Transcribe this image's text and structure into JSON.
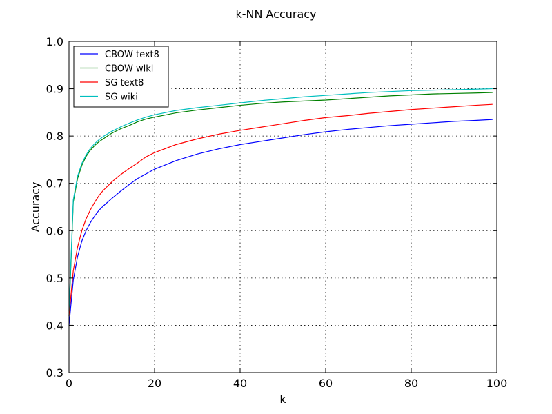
{
  "chart_data": {
    "type": "line",
    "title": "k-NN Accuracy",
    "xlabel": "k",
    "ylabel": "Accuracy",
    "xlim": [
      0,
      100
    ],
    "ylim": [
      0.3,
      1.0
    ],
    "xticks": [
      0,
      20,
      40,
      60,
      80,
      100
    ],
    "yticks": [
      0.3,
      0.4,
      0.5,
      0.6,
      0.7,
      0.8,
      0.9,
      1.0
    ],
    "xtick_labels": [
      "0",
      "20",
      "40",
      "60",
      "80",
      "100"
    ],
    "ytick_labels": [
      "0.3",
      "0.4",
      "0.5",
      "0.6",
      "0.7",
      "0.8",
      "0.9",
      "1.0"
    ],
    "grid": true,
    "legend_position": "top-left",
    "x": [
      0,
      1,
      2,
      3,
      4,
      5,
      6,
      7,
      8,
      10,
      12,
      14,
      16,
      18,
      20,
      25,
      30,
      35,
      40,
      45,
      50,
      55,
      60,
      65,
      70,
      75,
      80,
      85,
      90,
      95,
      99
    ],
    "series": [
      {
        "name": "CBOW text8",
        "color": "#0000ff",
        "values": [
          0.4,
          0.495,
          0.545,
          0.578,
          0.6,
          0.617,
          0.631,
          0.643,
          0.652,
          0.668,
          0.683,
          0.697,
          0.71,
          0.72,
          0.73,
          0.748,
          0.762,
          0.773,
          0.782,
          0.789,
          0.796,
          0.803,
          0.809,
          0.814,
          0.818,
          0.822,
          0.825,
          0.828,
          0.831,
          0.833,
          0.835
        ]
      },
      {
        "name": "CBOW wiki",
        "color": "#008000",
        "values": [
          0.42,
          0.66,
          0.71,
          0.738,
          0.757,
          0.77,
          0.78,
          0.788,
          0.794,
          0.806,
          0.815,
          0.822,
          0.83,
          0.836,
          0.84,
          0.849,
          0.855,
          0.86,
          0.865,
          0.869,
          0.872,
          0.874,
          0.876,
          0.879,
          0.882,
          0.885,
          0.887,
          0.889,
          0.89,
          0.891,
          0.892
        ]
      },
      {
        "name": "SG text8",
        "color": "#ff0000",
        "values": [
          0.42,
          0.515,
          0.565,
          0.6,
          0.625,
          0.644,
          0.66,
          0.674,
          0.685,
          0.703,
          0.718,
          0.731,
          0.743,
          0.756,
          0.765,
          0.782,
          0.794,
          0.804,
          0.812,
          0.819,
          0.826,
          0.833,
          0.839,
          0.843,
          0.848,
          0.852,
          0.856,
          0.859,
          0.862,
          0.865,
          0.867
        ]
      },
      {
        "name": "SG wiki",
        "color": "#00bfbf",
        "values": [
          0.43,
          0.665,
          0.715,
          0.742,
          0.76,
          0.774,
          0.784,
          0.792,
          0.799,
          0.81,
          0.819,
          0.827,
          0.834,
          0.84,
          0.845,
          0.854,
          0.86,
          0.865,
          0.87,
          0.875,
          0.879,
          0.883,
          0.886,
          0.889,
          0.892,
          0.894,
          0.896,
          0.897,
          0.898,
          0.899,
          0.9
        ]
      }
    ]
  }
}
